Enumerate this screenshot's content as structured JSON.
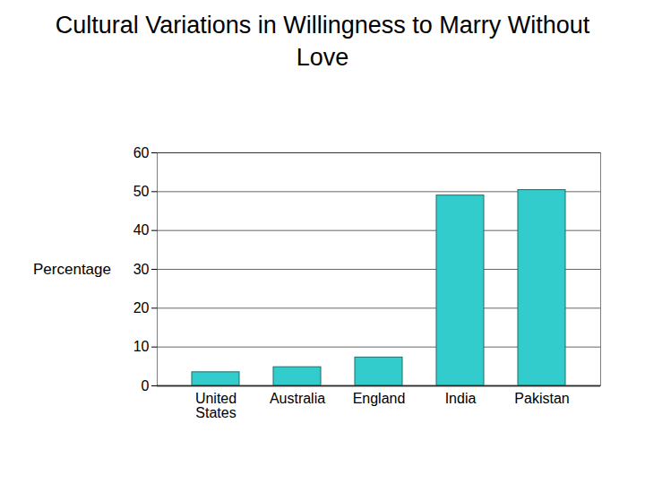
{
  "chart_data": {
    "type": "bar",
    "title": "Cultural Variations in Willingness to Marry Without Love",
    "y_label": "Percentage",
    "categories": [
      "United States",
      "Australia",
      "England",
      "India",
      "Pakistan"
    ],
    "values": [
      3.5,
      4.8,
      7.3,
      49.0,
      50.4
    ],
    "color": "#33cccc",
    "ylim": [
      0,
      60
    ],
    "yticks": [
      0,
      10,
      20,
      30,
      40,
      50,
      60
    ],
    "grid": true
  }
}
